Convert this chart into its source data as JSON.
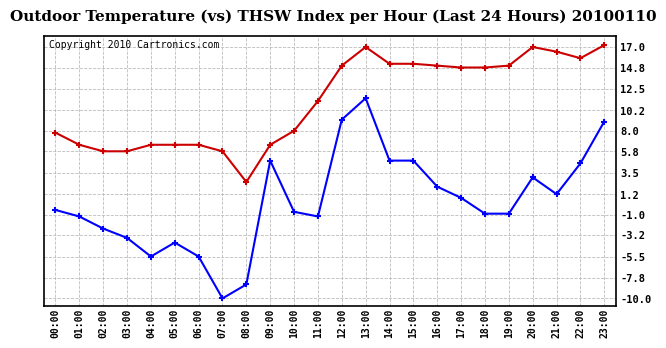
{
  "title": "Outdoor Temperature (vs) THSW Index per Hour (Last 24 Hours) 20100110",
  "copyright": "Copyright 2010 Cartronics.com",
  "hours": [
    "00:00",
    "01:00",
    "02:00",
    "03:00",
    "04:00",
    "05:00",
    "06:00",
    "07:00",
    "08:00",
    "09:00",
    "10:00",
    "11:00",
    "12:00",
    "13:00",
    "14:00",
    "15:00",
    "16:00",
    "17:00",
    "18:00",
    "19:00",
    "20:00",
    "21:00",
    "22:00",
    "23:00"
  ],
  "blue_data": [
    -0.5,
    -1.2,
    -2.5,
    -3.5,
    -5.5,
    -4.0,
    -5.5,
    -10.0,
    -8.5,
    4.8,
    -0.7,
    -1.2,
    9.2,
    11.5,
    4.8,
    4.8,
    2.0,
    0.8,
    -0.9,
    -0.9,
    3.0,
    1.2,
    4.5,
    9.0
  ],
  "red_data": [
    7.8,
    6.5,
    5.8,
    5.8,
    6.5,
    6.5,
    6.5,
    5.8,
    2.5,
    6.5,
    8.0,
    11.2,
    15.0,
    17.0,
    15.2,
    15.2,
    15.0,
    14.8,
    14.8,
    15.0,
    17.0,
    16.5,
    15.8,
    17.2
  ],
  "yticks": [
    17.0,
    14.8,
    12.5,
    10.2,
    8.0,
    5.8,
    3.5,
    1.2,
    -1.0,
    -3.2,
    -5.5,
    -7.8,
    -10.0
  ],
  "ylim": [
    -10.8,
    18.2
  ],
  "blue_color": "#0000FF",
  "red_color": "#CC0000",
  "grid_color": "#BBBBBB",
  "bg_color": "#FFFFFF",
  "title_fontsize": 11,
  "copyright_fontsize": 7
}
